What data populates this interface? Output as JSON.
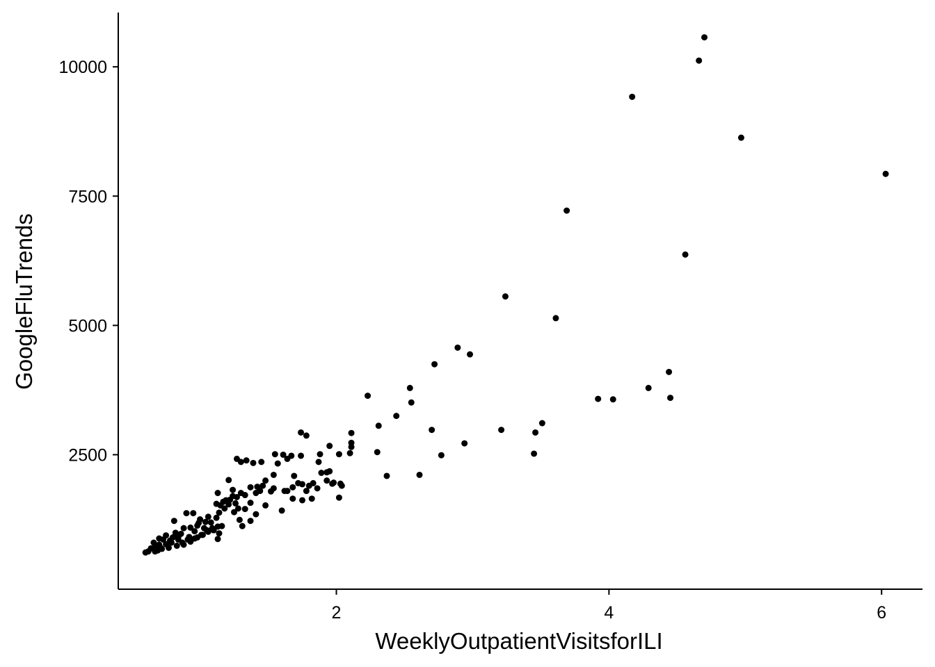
{
  "chart_data": {
    "type": "scatter",
    "title": "",
    "xlabel": "WeeklyOutpatientVisitsforILI",
    "ylabel": "GoogleFluTrends",
    "xlim": [
      0.4,
      6.3
    ],
    "ylim": [
      -100,
      11050
    ],
    "x_ticks": [
      2,
      4,
      6
    ],
    "y_ticks": [
      2500,
      5000,
      7500,
      10000
    ],
    "x_tick_labels": [
      "2",
      "4",
      "6"
    ],
    "y_tick_labels": [
      "2500",
      "5000",
      "7500",
      "10000"
    ],
    "grid": false,
    "legend": "none",
    "point_color": "#000000",
    "points": [
      [
        4.7,
        10570
      ],
      [
        4.66,
        10120
      ],
      [
        4.17,
        9420
      ],
      [
        4.97,
        8630
      ],
      [
        6.03,
        7930
      ],
      [
        3.69,
        7220
      ],
      [
        4.56,
        6370
      ],
      [
        3.24,
        5560
      ],
      [
        3.61,
        5140
      ],
      [
        2.89,
        4570
      ],
      [
        2.98,
        4440
      ],
      [
        2.72,
        4250
      ],
      [
        4.44,
        4100
      ],
      [
        2.23,
        3640
      ],
      [
        2.54,
        3790
      ],
      [
        2.55,
        3510
      ],
      [
        2.44,
        3250
      ],
      [
        2.31,
        3060
      ],
      [
        3.92,
        3580
      ],
      [
        4.03,
        3570
      ],
      [
        4.29,
        3790
      ],
      [
        4.45,
        3600
      ],
      [
        3.51,
        3110
      ],
      [
        3.46,
        2930
      ],
      [
        3.21,
        2980
      ],
      [
        2.7,
        2980
      ],
      [
        2.94,
        2720
      ],
      [
        2.77,
        2490
      ],
      [
        2.3,
        2550
      ],
      [
        3.45,
        2520
      ],
      [
        2.61,
        2110
      ],
      [
        2.37,
        2090
      ],
      [
        2.11,
        2920
      ],
      [
        2.11,
        2730
      ],
      [
        2.11,
        2650
      ],
      [
        2.1,
        2530
      ],
      [
        1.95,
        2670
      ],
      [
        2.02,
        2510
      ],
      [
        1.88,
        2510
      ],
      [
        1.87,
        2360
      ],
      [
        1.74,
        2930
      ],
      [
        1.78,
        2870
      ],
      [
        1.74,
        2480
      ],
      [
        1.67,
        2480
      ],
      [
        1.55,
        2510
      ],
      [
        1.61,
        2500
      ],
      [
        1.64,
        2420
      ],
      [
        1.57,
        2330
      ],
      [
        1.95,
        2180
      ],
      [
        1.93,
        2160
      ],
      [
        1.89,
        2150
      ],
      [
        1.93,
        2000
      ],
      [
        1.98,
        1960
      ],
      [
        2.03,
        1940
      ],
      [
        2.04,
        1900
      ],
      [
        1.97,
        1940
      ],
      [
        1.83,
        1950
      ],
      [
        1.8,
        1900
      ],
      [
        1.86,
        1850
      ],
      [
        1.78,
        1800
      ],
      [
        1.75,
        1930
      ],
      [
        1.72,
        1950
      ],
      [
        1.68,
        1870
      ],
      [
        1.64,
        1800
      ],
      [
        1.69,
        2090
      ],
      [
        1.54,
        2110
      ],
      [
        1.48,
        2000
      ],
      [
        1.46,
        1900
      ],
      [
        1.54,
        1850
      ],
      [
        1.52,
        1790
      ],
      [
        1.44,
        1800
      ],
      [
        1.41,
        1760
      ],
      [
        1.62,
        1800
      ],
      [
        1.68,
        1650
      ],
      [
        1.82,
        1650
      ],
      [
        2.02,
        1670
      ],
      [
        1.75,
        1620
      ],
      [
        1.6,
        1420
      ],
      [
        1.48,
        1520
      ],
      [
        1.41,
        1350
      ],
      [
        1.37,
        1220
      ],
      [
        1.31,
        1120
      ],
      [
        1.33,
        1450
      ],
      [
        1.37,
        1570
      ],
      [
        1.42,
        1880
      ],
      [
        1.37,
        1870
      ],
      [
        1.33,
        1720
      ],
      [
        1.3,
        1760
      ],
      [
        1.27,
        1680
      ],
      [
        1.24,
        1700
      ],
      [
        1.22,
        1630
      ],
      [
        1.19,
        1620
      ],
      [
        1.17,
        1590
      ],
      [
        1.21,
        1540
      ],
      [
        1.26,
        1560
      ],
      [
        1.28,
        1460
      ],
      [
        1.25,
        1390
      ],
      [
        1.29,
        1240
      ],
      [
        1.18,
        1460
      ],
      [
        1.15,
        1520
      ],
      [
        1.21,
        2010
      ],
      [
        1.27,
        2420
      ],
      [
        1.3,
        2360
      ],
      [
        1.34,
        2390
      ],
      [
        1.39,
        2340
      ],
      [
        1.45,
        2360
      ],
      [
        1.24,
        1820
      ],
      [
        1.13,
        1760
      ],
      [
        1.12,
        1550
      ],
      [
        1.14,
        1380
      ],
      [
        1.12,
        1280
      ],
      [
        1.13,
        1110
      ],
      [
        1.14,
        980
      ],
      [
        1.13,
        870
      ],
      [
        1.1,
        1040
      ],
      [
        1.08,
        1190
      ],
      [
        1.06,
        1300
      ],
      [
        1.04,
        1200
      ],
      [
        1.03,
        1080
      ],
      [
        1.02,
        950
      ],
      [
        1.0,
        1250
      ],
      [
        0.98,
        1130
      ],
      [
        0.96,
        1020
      ],
      [
        0.93,
        1090
      ],
      [
        0.95,
        1370
      ],
      [
        0.9,
        1370
      ],
      [
        0.88,
        1080
      ],
      [
        0.86,
        970
      ],
      [
        0.84,
        910
      ],
      [
        0.82,
        990
      ],
      [
        0.8,
        900
      ],
      [
        0.78,
        840
      ],
      [
        0.81,
        1220
      ],
      [
        0.75,
        940
      ],
      [
        0.73,
        860
      ],
      [
        0.7,
        880
      ],
      [
        0.7,
        760
      ],
      [
        0.67,
        720
      ],
      [
        0.66,
        800
      ],
      [
        0.64,
        690
      ],
      [
        0.62,
        630
      ],
      [
        0.6,
        610
      ],
      [
        0.67,
        630
      ],
      [
        0.72,
        680
      ],
      [
        0.77,
        700
      ],
      [
        0.83,
        740
      ],
      [
        0.87,
        800
      ],
      [
        0.91,
        860
      ],
      [
        0.96,
        880
      ],
      [
        1.01,
        950
      ],
      [
        1.06,
        1010
      ],
      [
        1.09,
        1080
      ],
      [
        1.16,
        1120
      ],
      [
        0.99,
        1180
      ],
      [
        1.05,
        1040
      ],
      [
        0.92,
        910
      ],
      [
        0.84,
        860
      ],
      [
        0.79,
        800
      ],
      [
        0.75,
        770
      ],
      [
        0.71,
        700
      ],
      [
        0.69,
        650
      ],
      [
        0.88,
        760
      ],
      [
        0.93,
        820
      ],
      [
        0.98,
        900
      ]
    ]
  }
}
